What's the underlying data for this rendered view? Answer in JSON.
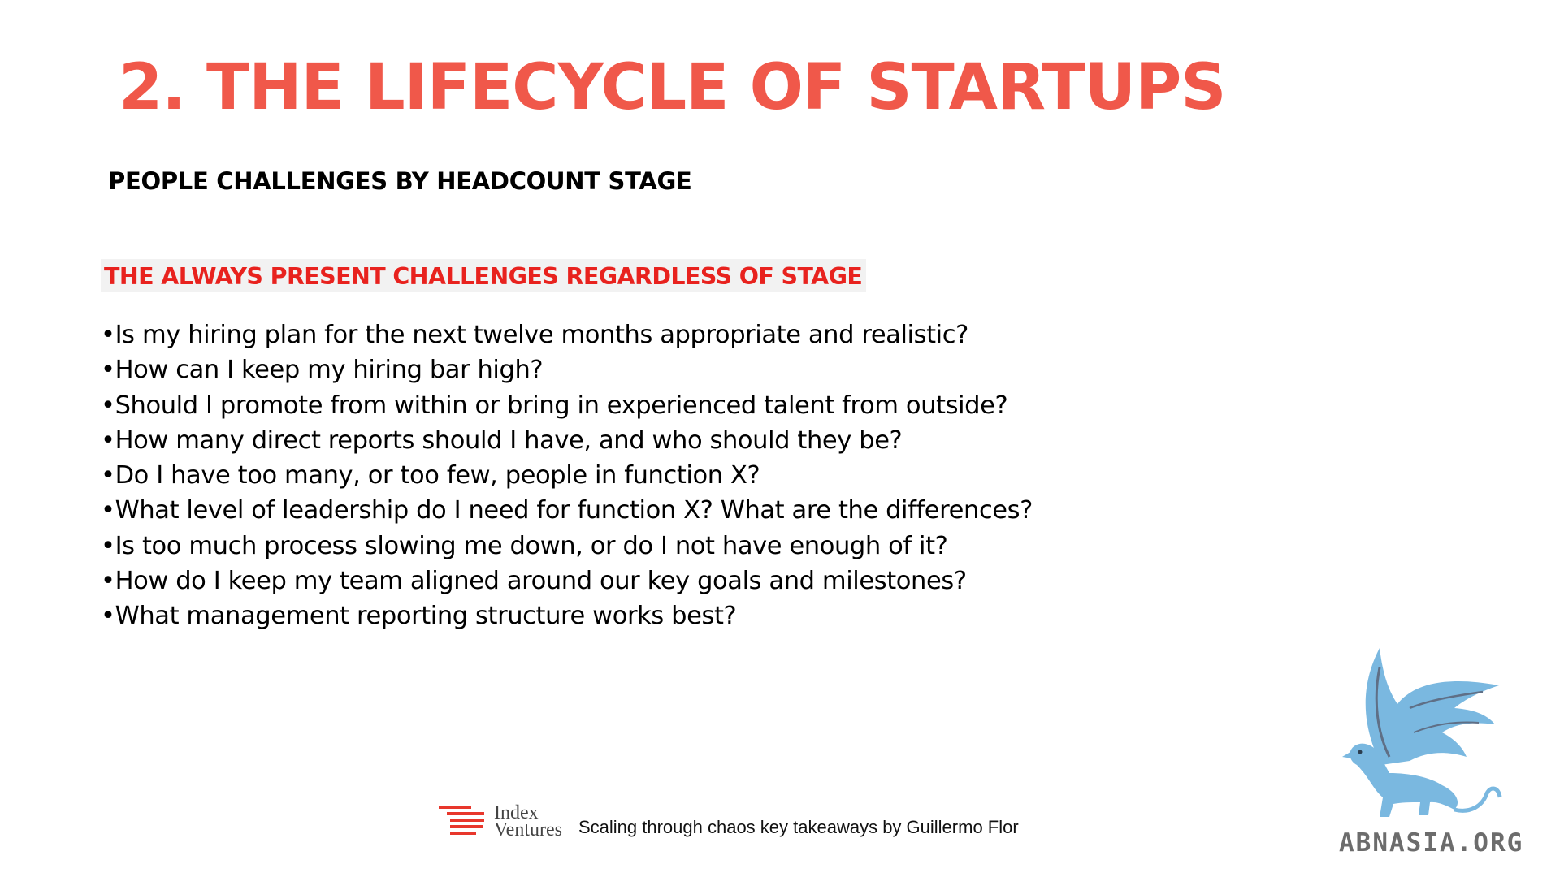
{
  "slide": {
    "title": "2. THE LIFECYCLE OF STARTUPS",
    "subtitle": "PEOPLE CHALLENGES BY HEADCOUNT STAGE",
    "section_heading": "THE ALWAYS PRESENT CHALLENGES REGARDLESS OF STAGE",
    "bullets": [
      "•Is my hiring plan for the next twelve months appropriate and realistic?",
      "•How can I keep my hiring bar high?",
      "•Should I promote from within or bring in experienced talent from outside?",
      "•How many direct reports should I have, and who should they be?",
      "•Do I have too many, or too few, people in function X?",
      "•What level of leadership do I need for function X? What are the differences?",
      "•Is too much process slowing me down, or do I not have enough of it?",
      "•How do I keep my team aligned around our key goals and milestones?",
      "•What management reporting structure works best?"
    ]
  },
  "footer": {
    "brand_line1": "Index",
    "brand_line2": "Ventures",
    "credit": "Scaling through chaos key takeaways by Guillermo Flor"
  },
  "watermark": {
    "text": "ABNASIA.ORG",
    "icon": "griffin-logo-icon"
  },
  "colors": {
    "title": "#f0584a",
    "section_heading": "#e8221e",
    "section_heading_bg": "#f2f2f2",
    "brand_red": "#e8372c",
    "logo_blue": "#7ab8e0"
  }
}
